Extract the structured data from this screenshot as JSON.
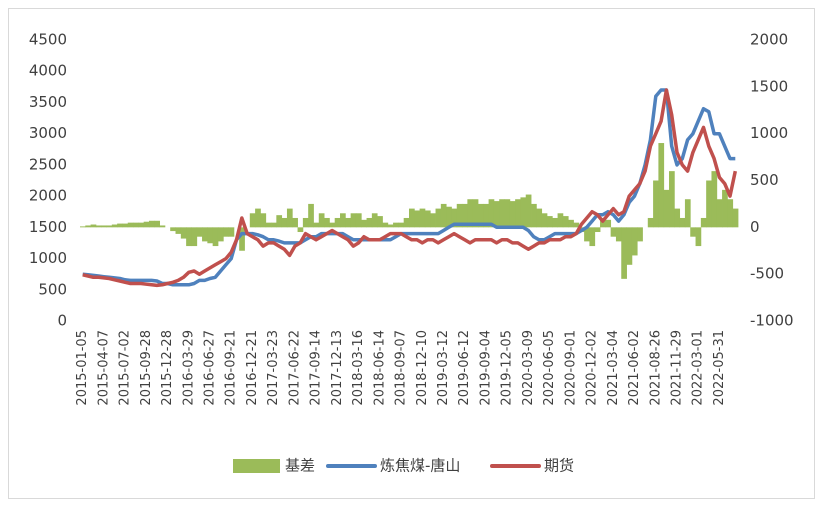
{
  "chart_data": {
    "type": "combo",
    "categories": [
      "2015-01-05",
      null,
      null,
      null,
      "2015-04-07",
      null,
      null,
      null,
      "2015-07-02",
      null,
      null,
      null,
      "2015-09-28",
      null,
      null,
      null,
      "2015-12-28",
      null,
      null,
      null,
      "2016-03-29",
      null,
      null,
      null,
      "2016-06-27",
      null,
      null,
      null,
      "2016-09-21",
      null,
      null,
      null,
      "2016-12-21",
      null,
      null,
      null,
      "2017-03-23",
      null,
      null,
      null,
      "2017-06-22",
      null,
      null,
      null,
      "2017-09-14",
      null,
      null,
      null,
      "2017-12-13",
      null,
      null,
      null,
      "2018-03-16",
      null,
      null,
      null,
      "2018-06-14",
      null,
      null,
      null,
      "2018-09-07",
      null,
      null,
      null,
      "2018-12-10",
      null,
      null,
      null,
      "2019-03-12",
      null,
      null,
      null,
      "2019-06-12",
      null,
      null,
      null,
      "2019-09-04",
      null,
      null,
      null,
      "2019-12-05",
      null,
      null,
      null,
      "2020-03-09",
      null,
      null,
      null,
      "2020-06-05",
      null,
      null,
      null,
      "2020-09-01",
      null,
      null,
      null,
      "2020-12-02",
      null,
      null,
      null,
      "2021-03-04",
      null,
      null,
      null,
      "2021-06-02",
      null,
      null,
      null,
      "2021-08-26",
      null,
      null,
      null,
      "2021-11-29",
      null,
      null,
      null,
      "2022-03-01",
      null,
      null,
      null,
      "2022-05-31",
      null,
      null,
      null
    ],
    "series": [
      {
        "name": "基差",
        "type": "area",
        "axis": "y2",
        "color": "#9bbb59",
        "values": [
          10,
          20,
          30,
          20,
          20,
          20,
          30,
          40,
          40,
          50,
          50,
          50,
          60,
          70,
          70,
          20,
          0,
          -40,
          -70,
          -120,
          -200,
          -200,
          -100,
          -150,
          -170,
          -200,
          -150,
          -100,
          -100,
          0,
          -250,
          0,
          150,
          200,
          150,
          50,
          50,
          130,
          100,
          200,
          100,
          -50,
          100,
          250,
          50,
          150,
          100,
          50,
          100,
          150,
          100,
          150,
          150,
          80,
          100,
          150,
          120,
          50,
          30,
          50,
          50,
          100,
          200,
          180,
          200,
          180,
          150,
          200,
          250,
          220,
          200,
          250,
          250,
          300,
          300,
          250,
          250,
          300,
          280,
          300,
          300,
          280,
          300,
          320,
          350,
          250,
          200,
          150,
          120,
          100,
          150,
          120,
          80,
          50,
          -50,
          -150,
          -200,
          -50,
          100,
          80,
          -100,
          -150,
          -550,
          -400,
          -300,
          -150,
          0,
          100,
          500,
          900,
          400,
          600,
          200,
          100,
          300,
          -100,
          -200,
          100,
          500,
          600,
          300,
          400,
          300,
          200
        ]
      },
      {
        "name": "炼焦煤-唐山",
        "type": "line",
        "color": "#4f81bd",
        "values": [
          750,
          740,
          730,
          720,
          710,
          700,
          690,
          680,
          660,
          650,
          650,
          650,
          650,
          650,
          640,
          600,
          600,
          580,
          580,
          580,
          580,
          600,
          650,
          650,
          680,
          700,
          800,
          900,
          1000,
          1300,
          1400,
          1400,
          1400,
          1380,
          1350,
          1300,
          1300,
          1280,
          1250,
          1250,
          1250,
          1250,
          1300,
          1350,
          1350,
          1400,
          1400,
          1400,
          1400,
          1400,
          1350,
          1300,
          1300,
          1300,
          1300,
          1300,
          1300,
          1300,
          1300,
          1350,
          1400,
          1400,
          1400,
          1400,
          1400,
          1400,
          1400,
          1400,
          1450,
          1500,
          1550,
          1550,
          1550,
          1550,
          1550,
          1550,
          1550,
          1550,
          1500,
          1500,
          1500,
          1500,
          1500,
          1500,
          1450,
          1350,
          1300,
          1300,
          1350,
          1400,
          1400,
          1400,
          1400,
          1400,
          1450,
          1500,
          1600,
          1700,
          1700,
          1750,
          1700,
          1600,
          1700,
          1900,
          2000,
          2200,
          2500,
          2900,
          3600,
          3700,
          3700,
          2800,
          2500,
          2600,
          2900,
          3000,
          3200,
          3400,
          3350,
          3000,
          3000,
          2800,
          2600,
          2600
        ]
      },
      {
        "name": "期货",
        "type": "line",
        "color": "#c0504d",
        "values": [
          740,
          720,
          700,
          700,
          690,
          680,
          660,
          640,
          620,
          600,
          600,
          600,
          590,
          580,
          570,
          580,
          600,
          620,
          650,
          700,
          780,
          800,
          750,
          800,
          850,
          900,
          950,
          1000,
          1100,
          1300,
          1650,
          1400,
          1350,
          1300,
          1200,
          1250,
          1250,
          1200,
          1150,
          1050,
          1200,
          1250,
          1400,
          1350,
          1300,
          1350,
          1400,
          1450,
          1400,
          1350,
          1300,
          1200,
          1250,
          1350,
          1300,
          1300,
          1300,
          1350,
          1400,
          1400,
          1400,
          1350,
          1300,
          1300,
          1250,
          1300,
          1300,
          1250,
          1300,
          1350,
          1400,
          1350,
          1300,
          1250,
          1300,
          1300,
          1300,
          1300,
          1250,
          1300,
          1300,
          1250,
          1250,
          1200,
          1150,
          1200,
          1250,
          1250,
          1300,
          1300,
          1300,
          1350,
          1350,
          1400,
          1550,
          1650,
          1750,
          1700,
          1600,
          1700,
          1800,
          1700,
          1750,
          2000,
          2100,
          2200,
          2400,
          2800,
          3000,
          3200,
          3700,
          3300,
          2700,
          2500,
          2400,
          2700,
          2900,
          3100,
          2800,
          2600,
          2300,
          2200,
          2000,
          2400
        ]
      }
    ],
    "ylim": [
      0,
      4500
    ],
    "yticks": [
      0,
      500,
      1000,
      1500,
      2000,
      2500,
      3000,
      3500,
      4000,
      4500
    ],
    "y2lim": [
      -1000,
      2000
    ],
    "y2ticks": [
      -1000,
      -500,
      0,
      500,
      1000,
      1500,
      2000
    ],
    "grid": false,
    "legend": "bottom"
  }
}
